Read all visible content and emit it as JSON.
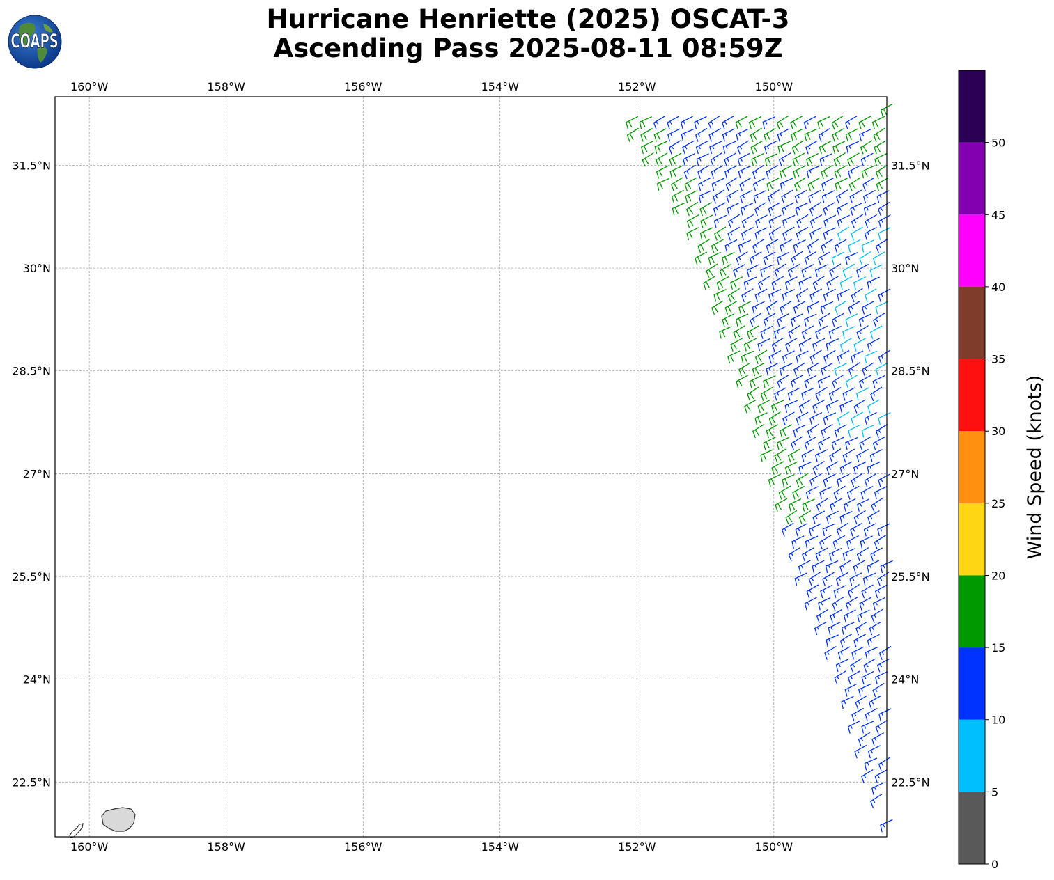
{
  "title": {
    "line1": "Hurricane Henriette (2025) OSCAT-3",
    "line2": "Ascending Pass 2025-08-11 08:59Z"
  },
  "logo": {
    "text": "COAPS",
    "icon": "globe-logo-icon"
  },
  "map": {
    "lon_range": [
      -160.5,
      -148.35
    ],
    "lat_range": [
      21.7,
      32.5
    ],
    "lon_ticks": [
      {
        "value": -160,
        "label": "160°W"
      },
      {
        "value": -158,
        "label": "158°W"
      },
      {
        "value": -156,
        "label": "156°W"
      },
      {
        "value": -154,
        "label": "154°W"
      },
      {
        "value": -152,
        "label": "152°W"
      },
      {
        "value": -150,
        "label": "150°W"
      }
    ],
    "lat_ticks": [
      {
        "value": 31.5,
        "label": "31.5°N"
      },
      {
        "value": 30,
        "label": "30°N"
      },
      {
        "value": 28.5,
        "label": "28.5°N"
      },
      {
        "value": 27,
        "label": "27°N"
      },
      {
        "value": 25.5,
        "label": "25.5°N"
      },
      {
        "value": 24,
        "label": "24°N"
      },
      {
        "value": 22.5,
        "label": "22.5°N"
      }
    ],
    "grid": true,
    "swath": {
      "west_edge": [
        [
          -152.25,
          32.3
        ],
        [
          -151.2,
          30.6
        ],
        [
          -150.5,
          28.5
        ],
        [
          -150.0,
          27.0
        ],
        [
          -149.6,
          25.5
        ],
        [
          -149.0,
          24.0
        ],
        [
          -148.6,
          22.5
        ],
        [
          -148.35,
          21.9
        ]
      ],
      "east_lon": -148.35,
      "wind_direction": "from the west-northwest",
      "speed_zones": "blue 10-15 kt across most of swath; green 15-20 kt along western edge north of 26.5°N; cyan 5-10 kt patches near eastern edge between 27.5°N and 30.5°N"
    },
    "islands": [
      "Kauai",
      "Niihau"
    ]
  },
  "colorbar": {
    "label": "Wind Speed (knots)",
    "ticks": [
      "0",
      "5",
      "10",
      "15",
      "20",
      "25",
      "30",
      "35",
      "40",
      "45",
      "50"
    ],
    "bins": [
      {
        "range": [
          0,
          5
        ],
        "color": "#595959"
      },
      {
        "range": [
          5,
          10
        ],
        "color": "#00bfff"
      },
      {
        "range": [
          10,
          15
        ],
        "color": "#0033ff"
      },
      {
        "range": [
          15,
          20
        ],
        "color": "#009900"
      },
      {
        "range": [
          20,
          25
        ],
        "color": "#ffd614"
      },
      {
        "range": [
          25,
          30
        ],
        "color": "#ff9010"
      },
      {
        "range": [
          30,
          35
        ],
        "color": "#ff1010"
      },
      {
        "range": [
          35,
          40
        ],
        "color": "#7f3c2b"
      },
      {
        "range": [
          40,
          45
        ],
        "color": "#ff00ff"
      },
      {
        "range": [
          45,
          50
        ],
        "color": "#8200b0"
      },
      {
        "range": [
          50,
          55
        ],
        "color": "#2b0055"
      }
    ]
  }
}
